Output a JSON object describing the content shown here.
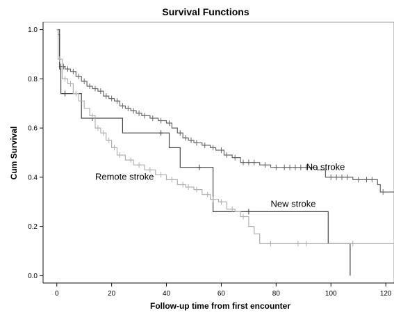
{
  "chart_data": {
    "type": "line",
    "step": true,
    "title": "Survival Functions",
    "xlabel": "Follow-up time from first encounter",
    "ylabel": "Cum Survival",
    "xlim": [
      -5,
      123
    ],
    "ylim": [
      -0.03,
      1.03
    ],
    "xticks": [
      0,
      20,
      40,
      60,
      80,
      100,
      120
    ],
    "yticks": [
      0.0,
      0.2,
      0.4,
      0.6,
      0.8,
      1.0
    ],
    "xtick_labels": [
      "0",
      "20",
      "40",
      "60",
      "80",
      "100",
      "120"
    ],
    "ytick_labels": [
      "0.0",
      "0.2",
      "0.4",
      "0.6",
      "0.8",
      "1.0"
    ],
    "grid": false,
    "series": [
      {
        "name": "No stroke",
        "color": "#666666",
        "points": [
          [
            0,
            1.0
          ],
          [
            0.5,
            0.98
          ],
          [
            1,
            0.85
          ],
          [
            3,
            0.84
          ],
          [
            5,
            0.83
          ],
          [
            7,
            0.81
          ],
          [
            9,
            0.79
          ],
          [
            11,
            0.77
          ],
          [
            13,
            0.76
          ],
          [
            15,
            0.75
          ],
          [
            17,
            0.73
          ],
          [
            19,
            0.72
          ],
          [
            21,
            0.71
          ],
          [
            23,
            0.69
          ],
          [
            25,
            0.68
          ],
          [
            27,
            0.67
          ],
          [
            29,
            0.66
          ],
          [
            31,
            0.65
          ],
          [
            34,
            0.64
          ],
          [
            37,
            0.63
          ],
          [
            40,
            0.62
          ],
          [
            42,
            0.6
          ],
          [
            44,
            0.58
          ],
          [
            46,
            0.56
          ],
          [
            48,
            0.55
          ],
          [
            50,
            0.54
          ],
          [
            53,
            0.53
          ],
          [
            56,
            0.52
          ],
          [
            58,
            0.51
          ],
          [
            61,
            0.49
          ],
          [
            64,
            0.48
          ],
          [
            67,
            0.46
          ],
          [
            74,
            0.45
          ],
          [
            78,
            0.44
          ],
          [
            95,
            0.43
          ],
          [
            98,
            0.4
          ],
          [
            108,
            0.39
          ],
          [
            117,
            0.37
          ],
          [
            118,
            0.34
          ],
          [
            123,
            0.34
          ]
        ],
        "censor": [
          1.5,
          2.5,
          4,
          6,
          8,
          10,
          12,
          14,
          16,
          18,
          20,
          22,
          24,
          26,
          28,
          30,
          32,
          35,
          38,
          41,
          45,
          47,
          49,
          51,
          54,
          57,
          60,
          62,
          65,
          68,
          70,
          72,
          76,
          80,
          83,
          85,
          87,
          89,
          91,
          93,
          100,
          102,
          104,
          106,
          110,
          113,
          115,
          119
        ]
      },
      {
        "name": "New stroke",
        "color": "#444444",
        "points": [
          [
            0,
            1.0
          ],
          [
            1,
            0.84
          ],
          [
            1.5,
            0.74
          ],
          [
            9,
            0.64
          ],
          [
            24,
            0.58
          ],
          [
            41,
            0.52
          ],
          [
            45,
            0.44
          ],
          [
            57,
            0.26
          ],
          [
            97,
            0.26
          ],
          [
            99,
            0.13
          ],
          [
            107,
            0.13
          ],
          [
            107,
            0.0
          ]
        ],
        "censor": [
          3,
          13,
          38,
          52,
          70
        ]
      },
      {
        "name": "Remote stroke",
        "color": "#b0b0b0",
        "points": [
          [
            0,
            1.0
          ],
          [
            0.5,
            0.88
          ],
          [
            2,
            0.8
          ],
          [
            4,
            0.78
          ],
          [
            6,
            0.74
          ],
          [
            8,
            0.71
          ],
          [
            10,
            0.68
          ],
          [
            12,
            0.65
          ],
          [
            14,
            0.6
          ],
          [
            16,
            0.58
          ],
          [
            18,
            0.55
          ],
          [
            20,
            0.52
          ],
          [
            22,
            0.49
          ],
          [
            25,
            0.47
          ],
          [
            28,
            0.45
          ],
          [
            32,
            0.43
          ],
          [
            36,
            0.41
          ],
          [
            40,
            0.39
          ],
          [
            44,
            0.37
          ],
          [
            47,
            0.36
          ],
          [
            50,
            0.35
          ],
          [
            53,
            0.33
          ],
          [
            56,
            0.31
          ],
          [
            59,
            0.3
          ],
          [
            62,
            0.27
          ],
          [
            65,
            0.26
          ],
          [
            67,
            0.24
          ],
          [
            70,
            0.2
          ],
          [
            72,
            0.17
          ],
          [
            74,
            0.13
          ],
          [
            123,
            0.13
          ]
        ],
        "censor": [
          1,
          3,
          5,
          7,
          13,
          15,
          17,
          19,
          21,
          23,
          27,
          30,
          34,
          38,
          42,
          46,
          48,
          51,
          55,
          57,
          60,
          64,
          68,
          78,
          88,
          91,
          108
        ]
      }
    ],
    "annotations": [
      {
        "text": "No stroke",
        "x": 91,
        "y": 0.43
      },
      {
        "text": "New stroke",
        "x": 78,
        "y": 0.28
      },
      {
        "text": "Remote stroke",
        "x": 14,
        "y": 0.39
      }
    ]
  }
}
